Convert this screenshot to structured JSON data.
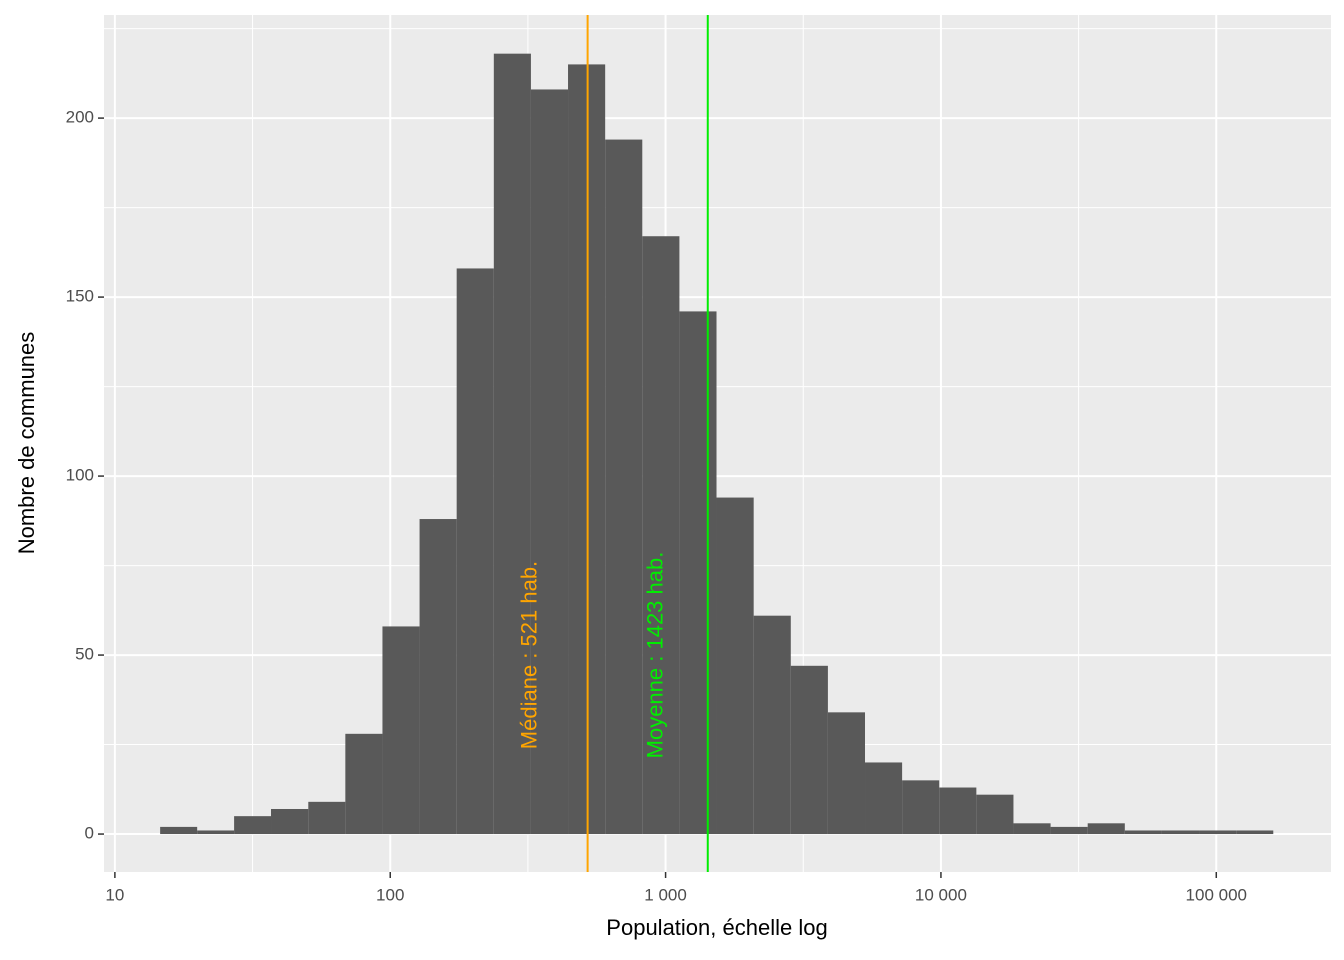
{
  "chart_data": {
    "type": "histogram",
    "x_label": "Population, échelle log",
    "y_label": "Nombre de communes",
    "xscale": "log",
    "bins": [
      14.6,
      19.9,
      27.1,
      36.9,
      50.4,
      68.7,
      93.7,
      127.8,
      174.3,
      237.8,
      324.3,
      442.3,
      603.4,
      823.0,
      1122.6,
      1531,
      2089,
      2849,
      3886,
      5300,
      7228,
      9858,
      13447,
      18340,
      25016,
      34120,
      46537,
      63475,
      86578,
      118087,
      161065
    ],
    "values": [
      2,
      1,
      5,
      7,
      9,
      28,
      58,
      88,
      158,
      218,
      208,
      215,
      194,
      167,
      146,
      94,
      61,
      47,
      34,
      20,
      15,
      13,
      11,
      3,
      2,
      3,
      1,
      1,
      1,
      1
    ],
    "color": "#595959",
    "xlim": [
      9.13,
      261000
    ],
    "ylim": [
      -10.6,
      228.8
    ],
    "xticks": [
      10,
      100,
      {
        "value": 1000,
        "label": "1 000"
      },
      {
        "value": 10000,
        "label": "10 000"
      },
      {
        "value": 100000,
        "label": "100 000"
      }
    ],
    "xminor": [
      31.62,
      316.2,
      3162,
      31623
    ],
    "yticks": [
      0,
      50,
      100,
      150,
      200
    ],
    "yminor": [
      25,
      75,
      125,
      175,
      225
    ],
    "grid": true,
    "vlines": [
      {
        "value": 521,
        "color": "#ffa500",
        "label": "Médiane : 521 hab."
      },
      {
        "value": 1423,
        "color": "#00ee00",
        "label": "Moyenne : 1423 hab."
      }
    ]
  }
}
